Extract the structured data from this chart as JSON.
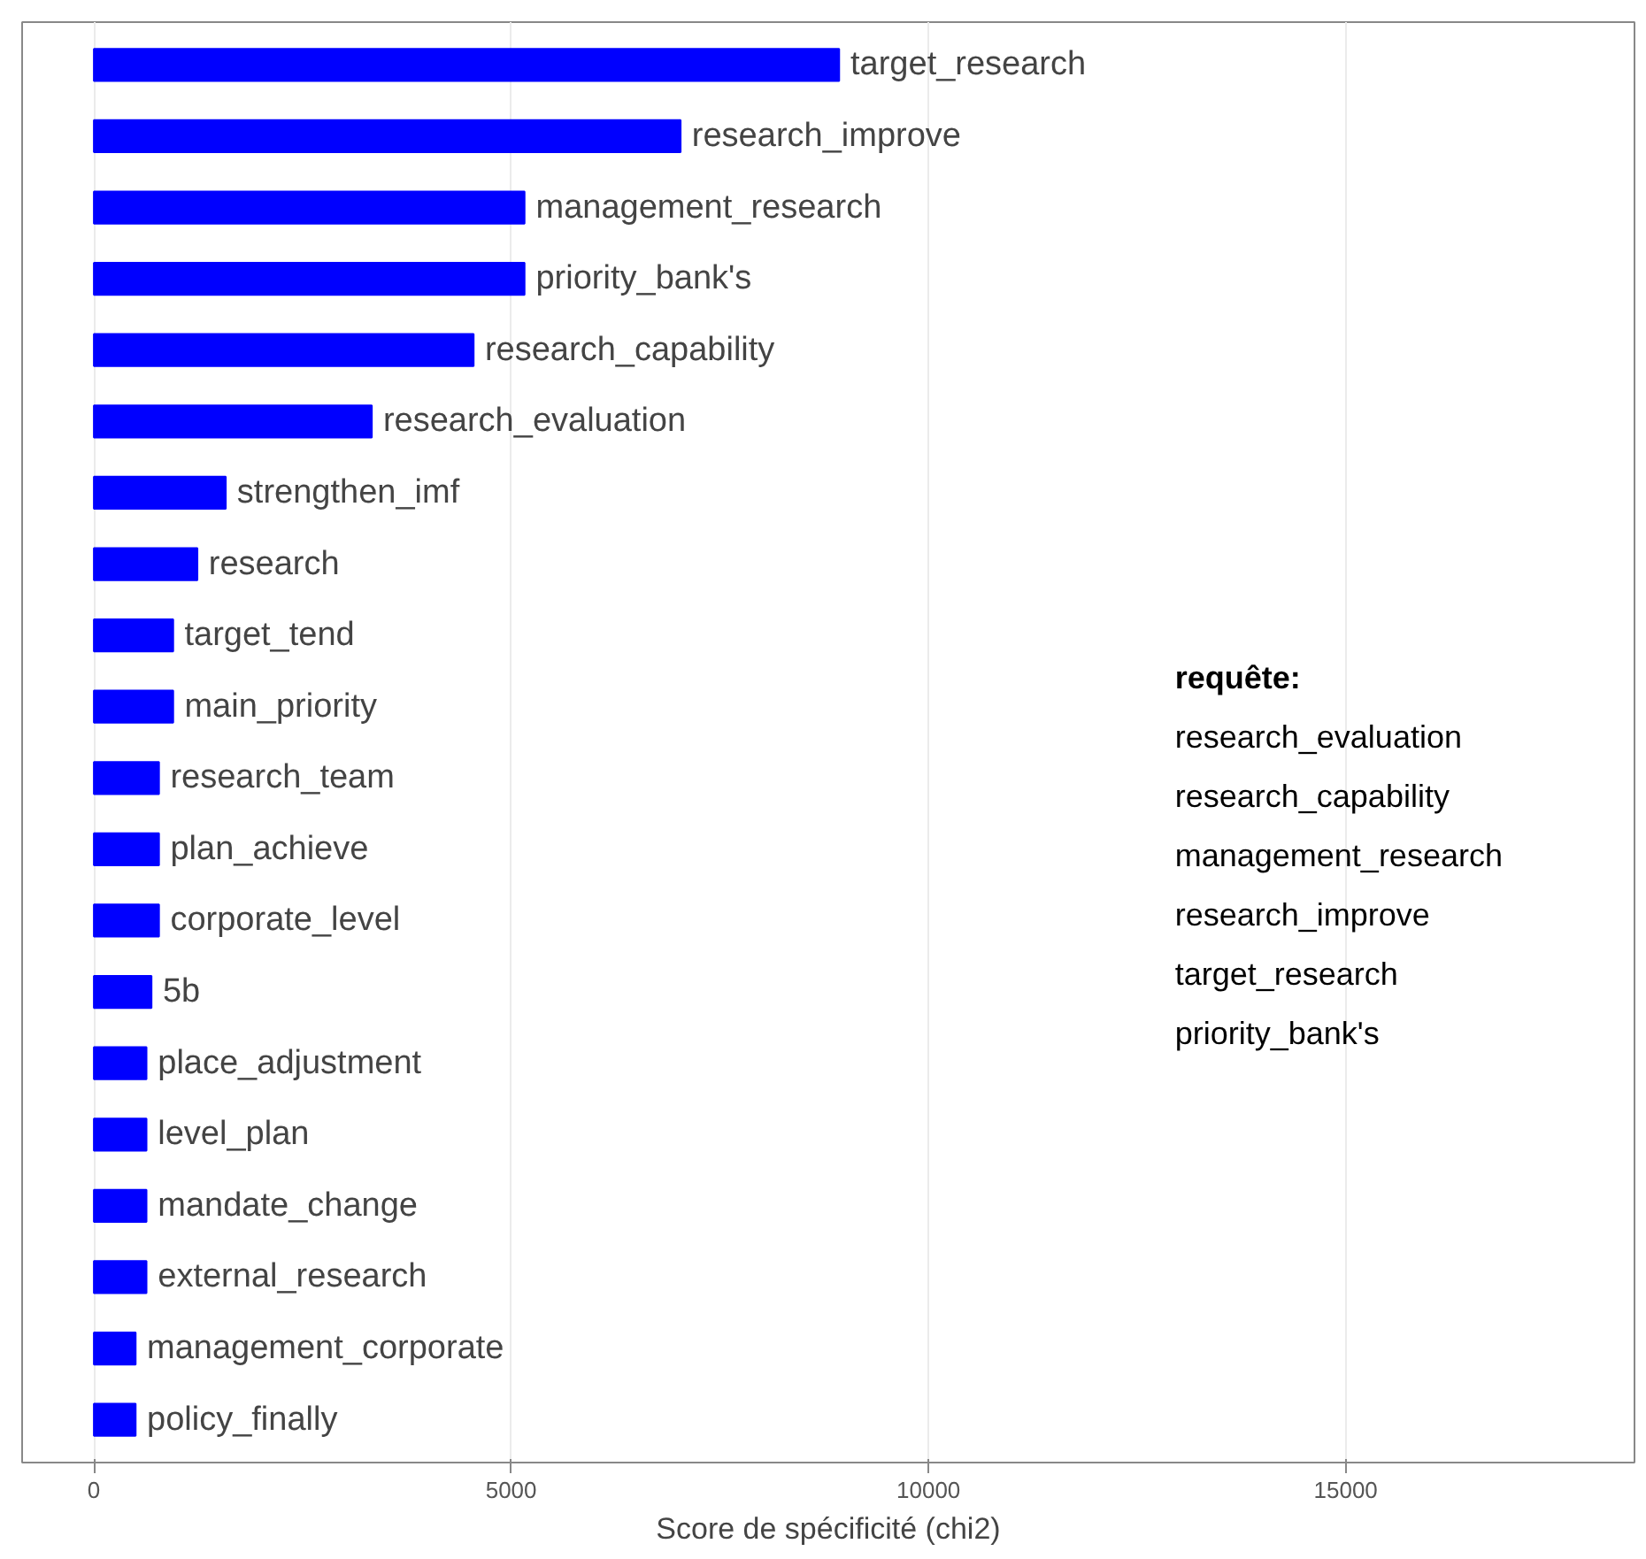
{
  "chart_data": {
    "type": "bar",
    "orientation": "horizontal",
    "xlabel": "Score de spécificité (chi2)",
    "categories": [
      "target_research",
      "research_improve",
      "management_research",
      "priority_bank's",
      "research_capability",
      "research_evaluation",
      "strengthen_imf",
      "research",
      "target_tend",
      "main_priority",
      "research_team",
      "plan_achieve",
      "corporate_level",
      "5b",
      "place_adjustment",
      "level_plan",
      "mandate_change",
      "external_research",
      "management_corporate",
      "policy_finally"
    ],
    "values": [
      8930,
      7030,
      5160,
      5160,
      4550,
      3330,
      1580,
      1240,
      950,
      950,
      780,
      780,
      780,
      690,
      630,
      630,
      630,
      630,
      500,
      500
    ],
    "color": "#0000ff",
    "xlim": [
      -860,
      18460
    ],
    "xticks": [
      0,
      5000,
      10000,
      15000
    ],
    "grid": "x",
    "tick_labels": "x",
    "annotations": [
      "requête:",
      "research_evaluation",
      "research_capability",
      "management_research",
      "research_improve",
      "target_research",
      "priority_bank's"
    ]
  }
}
